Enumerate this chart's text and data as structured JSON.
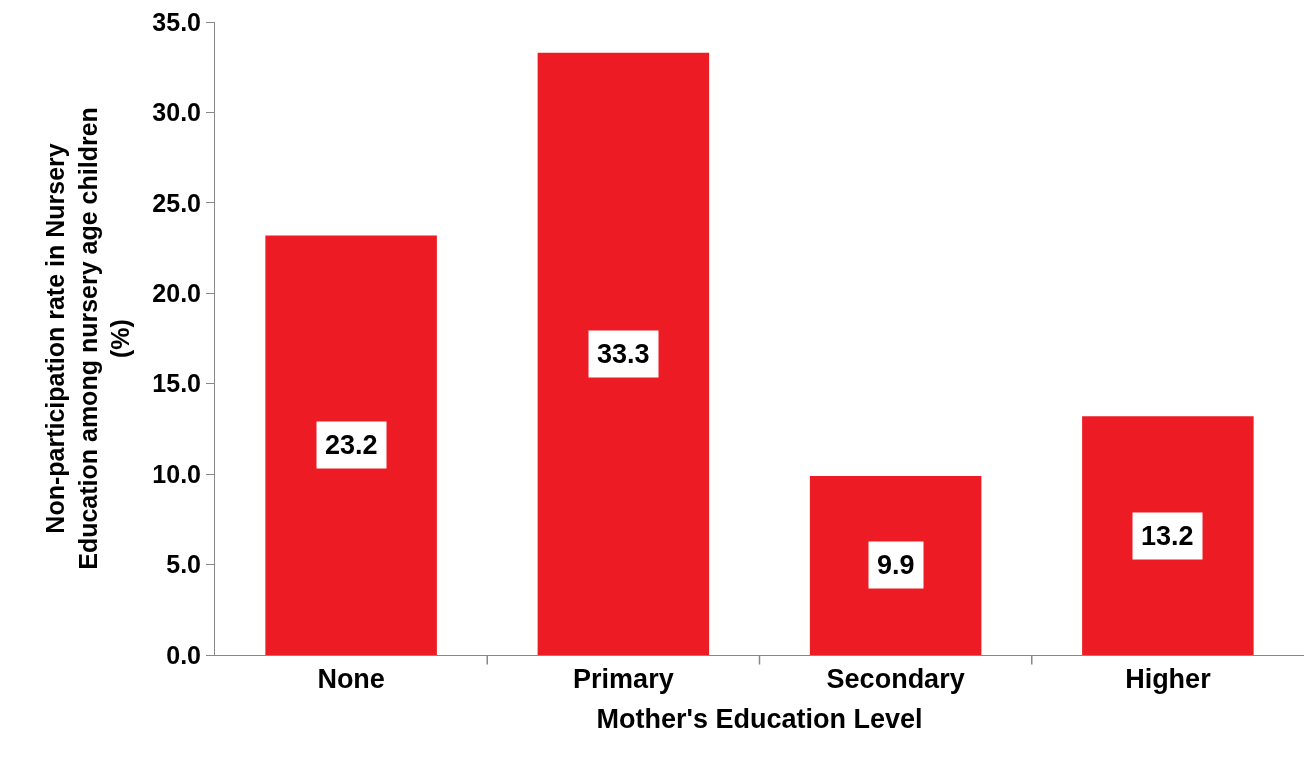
{
  "chart_data": {
    "type": "bar",
    "xlabel": "Mother's Education Level",
    "ylabel": "Non-participation rate in Nursery\nEducation among nursery age children\n(%)",
    "categories": [
      "None",
      "Primary",
      "Secondary",
      "Higher"
    ],
    "values": [
      23.2,
      33.3,
      9.9,
      13.2
    ],
    "color": "#ed1c24",
    "data_labels": true,
    "ylim": [
      0,
      35
    ],
    "yticks": [
      {
        "value": 0,
        "label": "0.0"
      },
      {
        "value": 5,
        "label": "5.0"
      },
      {
        "value": 10,
        "label": "10.0"
      },
      {
        "value": 15,
        "label": "15.0"
      },
      {
        "value": 20,
        "label": "20.0"
      },
      {
        "value": 25,
        "label": "25.0"
      },
      {
        "value": 30,
        "label": "30.0"
      },
      {
        "value": 35,
        "label": "35.0"
      }
    ]
  }
}
